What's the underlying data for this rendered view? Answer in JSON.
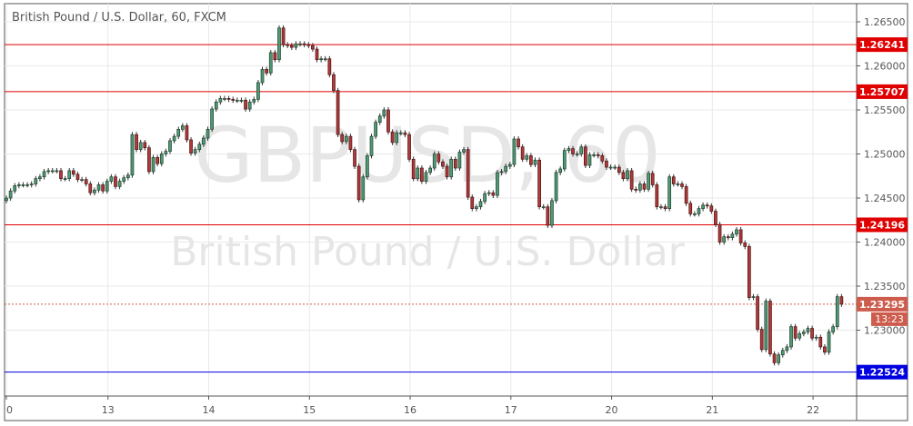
{
  "header": {
    "title": "British Pound / U.S. Dollar, 60, FXCM"
  },
  "watermark": {
    "symbol": "GBPUSD, 60",
    "name": "British Pound / U.S. Dollar"
  },
  "colors": {
    "up": "#4f9a74",
    "down": "#b0393a",
    "level": "#e00000",
    "support": "#0000e0",
    "current": "#cd5c4c",
    "grid": "#e9e9e9"
  },
  "chart_data": {
    "type": "candlestick",
    "title": "British Pound / U.S. Dollar, 60, FXCM",
    "interval_minutes": 60,
    "ylim": [
      1.2215,
      1.2668
    ],
    "grid": true,
    "y_ticks": [
      "1.26500",
      "1.26000",
      "1.25500",
      "1.25000",
      "1.24500",
      "1.24000",
      "1.23500",
      "1.23000"
    ],
    "y_tick_values": [
      1.265,
      1.26,
      1.255,
      1.25,
      1.245,
      1.24,
      1.235,
      1.23
    ],
    "x_ticks": [
      "0",
      "13",
      "14",
      "15",
      "16",
      "17",
      "20",
      "21",
      "22"
    ],
    "x_tick_candle_index": [
      0,
      24,
      48,
      72,
      96,
      120,
      144,
      168,
      192
    ],
    "levels": [
      {
        "label": "1.26241",
        "value": 1.26241,
        "color": "#e00000"
      },
      {
        "label": "1.25707",
        "value": 1.25707,
        "color": "#e00000"
      },
      {
        "label": "1.24196",
        "value": 1.24196,
        "color": "#e00000"
      },
      {
        "label": "1.22524",
        "value": 1.22524,
        "color": "#0000e0"
      }
    ],
    "current_price": {
      "label": "1.23295",
      "value": 1.23295,
      "countdown": "13:23"
    },
    "first_open": 1.2447,
    "closes": [
      1.245,
      1.2458,
      1.2464,
      1.2465,
      1.2465,
      1.2465,
      1.2466,
      1.2472,
      1.2474,
      1.248,
      1.2481,
      1.2481,
      1.2481,
      1.2472,
      1.2472,
      1.2481,
      1.2477,
      1.2471,
      1.2471,
      1.2466,
      1.2456,
      1.2459,
      1.2465,
      1.2458,
      1.2469,
      1.2474,
      1.2463,
      1.2469,
      1.2473,
      1.2476,
      1.2522,
      1.2505,
      1.2513,
      1.2507,
      1.248,
      1.2496,
      1.2489,
      1.25,
      1.2503,
      1.2515,
      1.252,
      1.2528,
      1.2532,
      1.2516,
      1.2501,
      1.2505,
      1.2511,
      1.2518,
      1.2528,
      1.2551,
      1.2559,
      1.2563,
      1.2563,
      1.2562,
      1.2561,
      1.2561,
      1.2561,
      1.2551,
      1.2559,
      1.2562,
      1.2581,
      1.2596,
      1.2592,
      1.2615,
      1.2607,
      1.2643,
      1.2624,
      1.2623,
      1.2621,
      1.2625,
      1.2625,
      1.2624,
      1.2623,
      1.2619,
      1.2607,
      1.2608,
      1.2608,
      1.259,
      1.2572,
      1.2522,
      1.2514,
      1.252,
      1.2505,
      1.2486,
      1.2448,
      1.2474,
      1.2498,
      1.252,
      1.2536,
      1.2543,
      1.255,
      1.2525,
      1.2513,
      1.2524,
      1.2524,
      1.2522,
      1.2494,
      1.2472,
      1.2484,
      1.2469,
      1.2479,
      1.2484,
      1.25,
      1.2491,
      1.2486,
      1.2474,
      1.2494,
      1.2484,
      1.2502,
      1.2505,
      1.2451,
      1.2438,
      1.244,
      1.2446,
      1.2455,
      1.2456,
      1.2453,
      1.2479,
      1.248,
      1.2486,
      1.2488,
      1.2517,
      1.2508,
      1.2494,
      1.2498,
      1.2488,
      1.2493,
      1.244,
      1.244,
      1.2419,
      1.2447,
      1.2479,
      1.2483,
      1.2504,
      1.2506,
      1.25,
      1.25,
      1.2508,
      1.2487,
      1.2499,
      1.2499,
      1.2498,
      1.2492,
      1.2485,
      1.2485,
      1.2485,
      1.2479,
      1.2472,
      1.2481,
      1.246,
      1.2459,
      1.2466,
      1.246,
      1.2478,
      1.2465,
      1.244,
      1.244,
      1.2438,
      1.2474,
      1.2466,
      1.2466,
      1.2463,
      1.2444,
      1.2432,
      1.2432,
      1.2438,
      1.2442,
      1.2441,
      1.2435,
      1.242,
      1.24,
      1.2406,
      1.2405,
      1.2409,
      1.2414,
      1.2399,
      1.2395,
      1.2337,
      1.2338,
      1.2301,
      1.2278,
      1.2333,
      1.2273,
      1.2263,
      1.2272,
      1.2277,
      1.2281,
      1.2304,
      1.2291,
      1.2296,
      1.2298,
      1.2302,
      1.2291,
      1.2292,
      1.2281,
      1.2275,
      1.2298,
      1.2304,
      1.2338,
      1.23295
    ]
  }
}
